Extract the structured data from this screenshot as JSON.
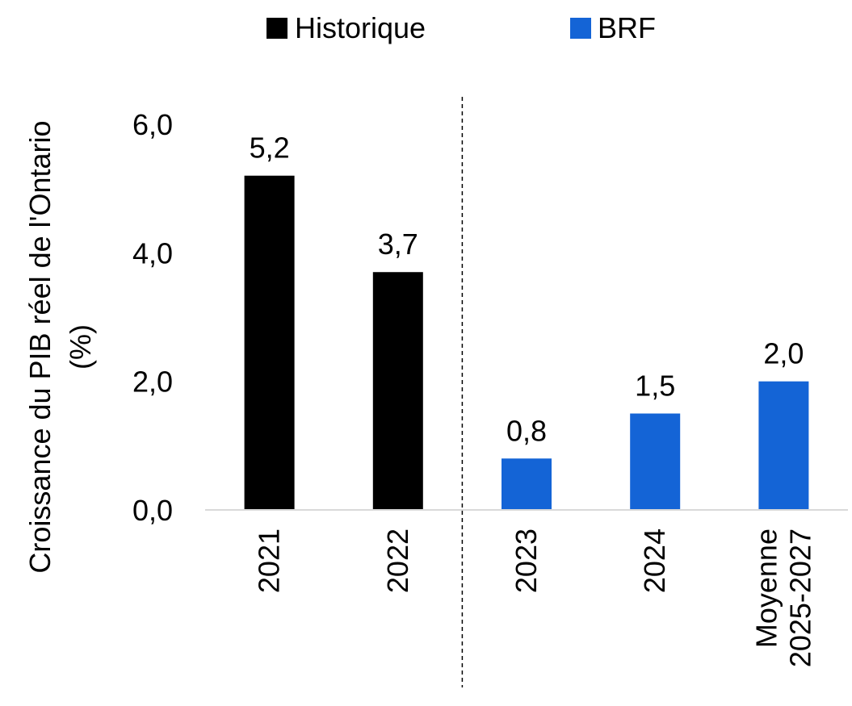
{
  "chart_data": {
    "type": "bar",
    "categories": [
      "2021",
      "2022",
      "2023",
      "2024",
      "Moyenne 2025-2027"
    ],
    "category_lines": [
      [
        "2021"
      ],
      [
        "2022"
      ],
      [
        "2023"
      ],
      [
        "2024"
      ],
      [
        "Moyenne",
        "2025-2027"
      ]
    ],
    "series": [
      {
        "name": "Historique",
        "color": "#000000",
        "values": [
          5.2,
          3.7,
          null,
          null,
          null
        ]
      },
      {
        "name": "BRF",
        "color": "#1464d6",
        "values": [
          null,
          null,
          0.8,
          1.5,
          2.0
        ]
      }
    ],
    "data_labels": [
      "5,2",
      "3,7",
      "0,8",
      "1,5",
      "2,0"
    ],
    "ylabel_lines": [
      "Croissance du PIB réel de l'Ontario",
      "(%)"
    ],
    "yticks": [
      0,
      2,
      4,
      6
    ],
    "ytick_labels": [
      "0,0",
      "2,0",
      "4,0",
      "6,0"
    ],
    "ylim": [
      0,
      6
    ],
    "legend": [
      "Historique",
      "BRF"
    ],
    "legend_position": "top",
    "grid": false,
    "divider_after_category": 1
  }
}
